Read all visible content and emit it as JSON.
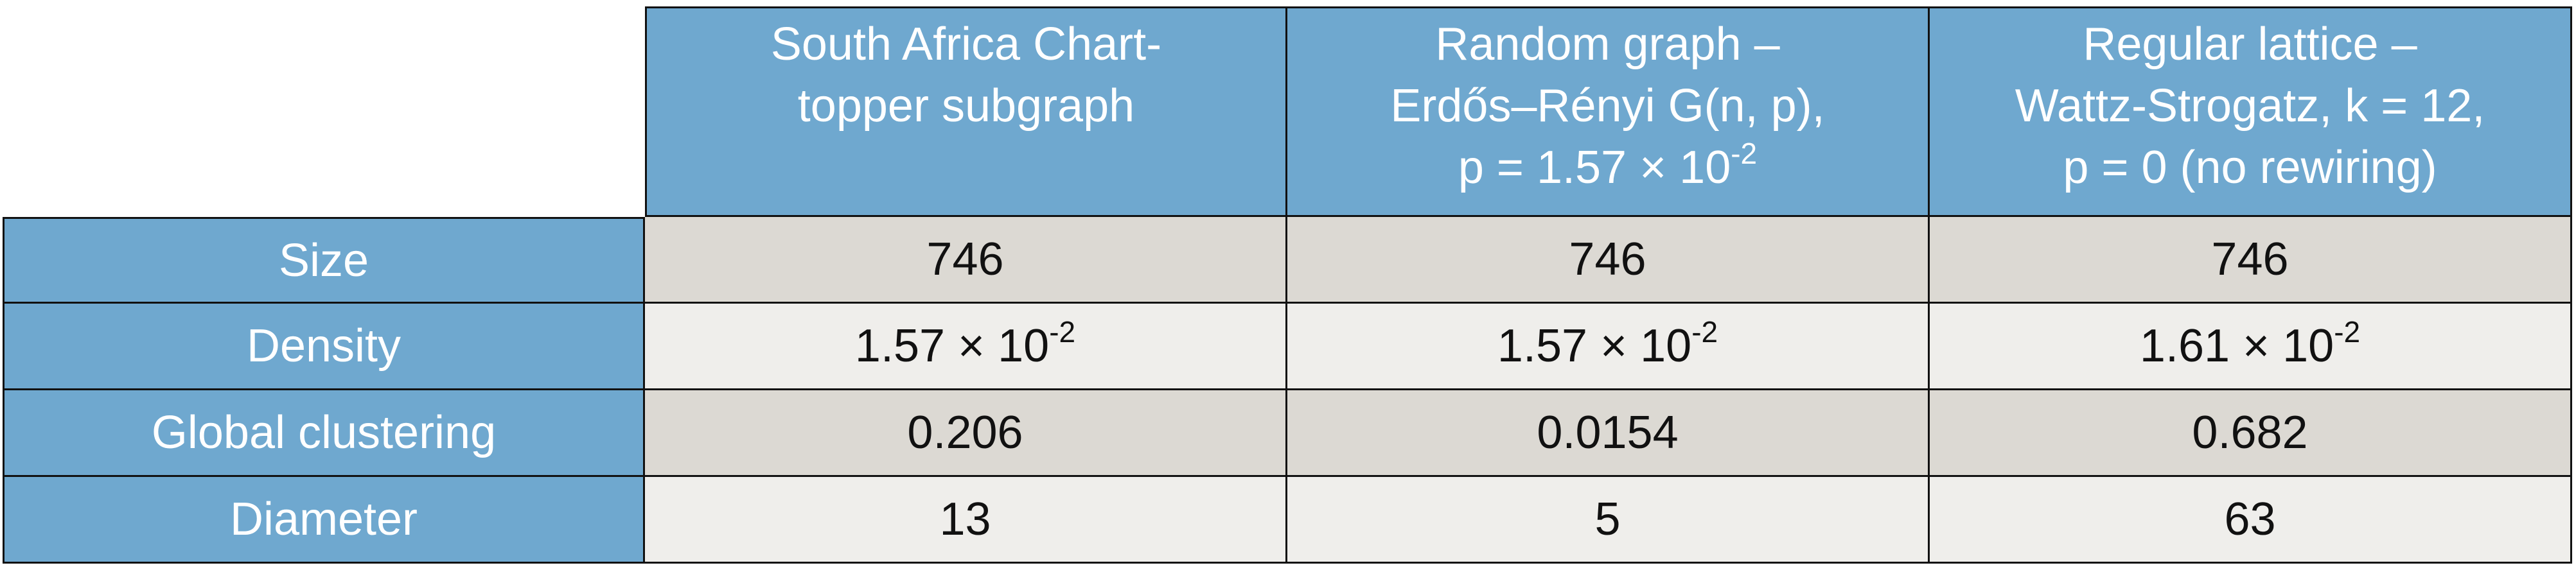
{
  "table": {
    "columns": [
      [
        "South Africa Chart-",
        "topper subgraph"
      ],
      [
        "Random graph –",
        "Erdős–Rényi G(n, p),",
        {
          "base": "p = 1.57 × 10",
          "exponent": "-2"
        }
      ],
      [
        "Regular lattice –",
        "Wattz-Strogatz, k = 12,",
        "p = 0 (no rewiring)"
      ]
    ],
    "rows": [
      {
        "label": "Size",
        "cells": [
          "746",
          "746",
          "746"
        ]
      },
      {
        "label": "Density",
        "cells": [
          {
            "base": "1.57 × 10",
            "exponent": "-2"
          },
          {
            "base": "1.57 × 10",
            "exponent": "-2"
          },
          {
            "base": "1.61 × 10",
            "exponent": "-2"
          }
        ]
      },
      {
        "label": "Global clustering",
        "cells": [
          "0.206",
          "0.0154",
          "0.682"
        ]
      },
      {
        "label": "Diameter",
        "cells": [
          "13",
          "5",
          "63"
        ]
      }
    ]
  }
}
